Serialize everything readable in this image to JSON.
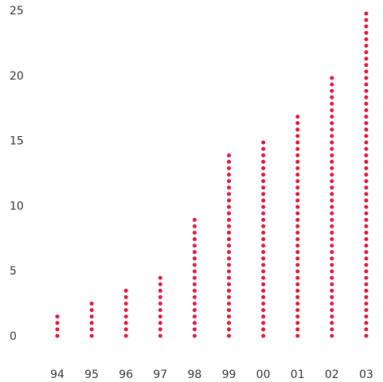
{
  "chart_data": {
    "type": "scatter",
    "title": "",
    "xlabel": "",
    "ylabel": "",
    "categories": [
      "94",
      "95",
      "96",
      "97",
      "98",
      "99",
      "00",
      "01",
      "02",
      "03"
    ],
    "values": [
      1.7,
      2.6,
      3.7,
      4.8,
      9.0,
      14.0,
      14.9,
      17.0,
      20.2,
      25.2
    ],
    "ylim": [
      0,
      25
    ],
    "yticks": [
      0,
      5,
      10,
      15,
      20,
      25
    ],
    "grid": false,
    "legend": "none",
    "marker_color": "#e0163c"
  }
}
